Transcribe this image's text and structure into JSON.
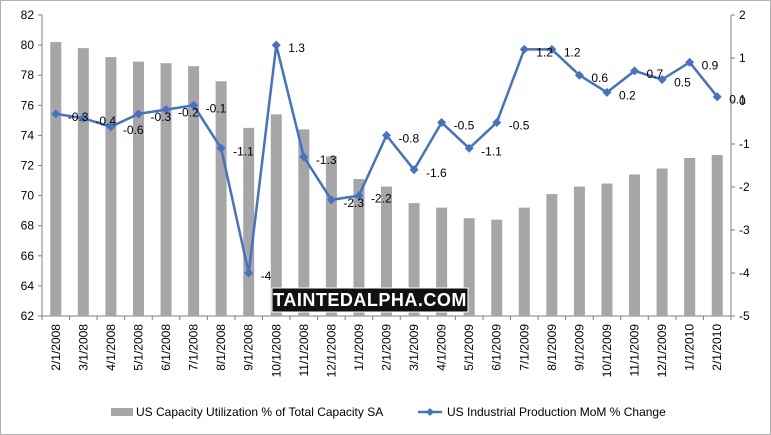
{
  "chart_data": {
    "type": "bar+line",
    "categories": [
      "2/1/2008",
      "3/1/2008",
      "4/1/2008",
      "5/1/2008",
      "6/1/2008",
      "7/1/2008",
      "8/1/2008",
      "9/1/2008",
      "10/1/2008",
      "11/1/2008",
      "12/1/2008",
      "1/1/2009",
      "2/1/2009",
      "3/1/2009",
      "4/1/2009",
      "5/1/2009",
      "6/1/2009",
      "7/1/2009",
      "8/1/2009",
      "9/1/2009",
      "10/1/2009",
      "11/1/2009",
      "12/1/2009",
      "1/1/2010",
      "2/1/2010"
    ],
    "series": [
      {
        "name": "US Capacity Utilization % of Total Capacity SA",
        "type": "bar",
        "axis": "left",
        "color": "#a6a6a6",
        "values": [
          80.2,
          79.8,
          79.2,
          78.9,
          78.8,
          78.6,
          77.6,
          74.5,
          75.4,
          74.4,
          72.6,
          71.1,
          70.6,
          69.5,
          69.2,
          68.5,
          68.4,
          69.2,
          70.1,
          70.6,
          70.8,
          71.4,
          71.8,
          72.5,
          72.7
        ]
      },
      {
        "name": "US Industrial Production MoM % Change",
        "type": "line",
        "axis": "right",
        "color": "#4472c4",
        "values": [
          -0.3,
          -0.4,
          -0.6,
          -0.3,
          -0.2,
          -0.1,
          -1.1,
          -4,
          1.3,
          -1.3,
          -2.3,
          -2.2,
          -0.8,
          -1.6,
          -0.5,
          -1.1,
          -0.5,
          1.2,
          1.2,
          0.6,
          0.2,
          0.7,
          0.5,
          0.9,
          0.1
        ],
        "labels": [
          "-0.3",
          "-0.4",
          "-0.6",
          "-0.3",
          "-0.2",
          "-0.1",
          "-1.1",
          "-4",
          "1.3",
          "-1.3",
          "-2.3",
          "-2.2",
          "-0.8",
          "-1.6",
          "-0.5",
          "-1.1",
          "-0.5",
          "1.2",
          "1.2",
          "0.6",
          "0.2",
          "0.7",
          "0.5",
          "0.9",
          "0.1"
        ]
      }
    ],
    "yleft": {
      "min": 62,
      "max": 82,
      "step": 2,
      "ticks": [
        "62",
        "64",
        "66",
        "68",
        "70",
        "72",
        "74",
        "76",
        "78",
        "80",
        "82"
      ]
    },
    "yright": {
      "min": -5,
      "max": 2,
      "step": 1,
      "ticks": [
        "-5",
        "-4",
        "-3",
        "-2",
        "-1",
        "0",
        "1",
        "2"
      ]
    },
    "grid": false,
    "legend_position": "bottom",
    "legend": [
      {
        "label": "US Capacity Utilization % of Total Capacity SA",
        "kind": "bar",
        "color": "#a6a6a6"
      },
      {
        "label": "US Industrial Production MoM % Change",
        "kind": "line",
        "color": "#4472c4"
      }
    ]
  },
  "watermark": {
    "text": "TAINTEDALPHA.COM"
  }
}
